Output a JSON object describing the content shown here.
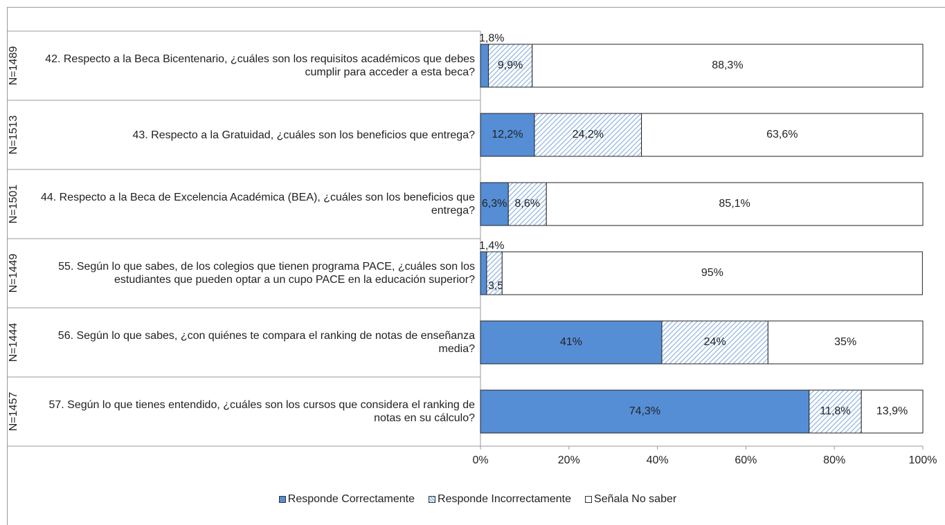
{
  "chart_data": {
    "type": "stacked-bar-horizontal",
    "categories": [
      "42. Respecto a la Beca Bicentenario, ¿cuáles son los requisitos académicos que debes cumplir para acceder a esta beca?",
      "43. Respecto a la Gratuidad, ¿cuáles son los beneficios que entrega?",
      "44. Respecto a la Beca de Excelencia Académica (BEA), ¿cuáles son los beneficios que entrega?",
      "55. Según lo que sabes, de los colegios que tienen programa PACE, ¿cuáles son los estudiantes que pueden optar a un cupo PACE en la educación superior?",
      "56. Según lo que sabes, ¿con quiénes te compara el ranking de notas de enseñanza media?",
      "57. Según lo que tienes entendido, ¿cuáles son los cursos que considera el ranking de notas en su cálculo?"
    ],
    "group_labels": [
      "N=1489",
      "N=1513",
      "N=1501",
      "N=1449",
      "N=1444",
      "N=1457"
    ],
    "series": [
      {
        "name": "Responde Correctamente",
        "color": "#558ed5",
        "values": [
          1.8,
          12.2,
          6.3,
          1.4,
          41,
          74.3
        ],
        "value_labels": [
          "1,8%",
          "12,2%",
          "6,3%",
          "1,4%",
          "41%",
          "74,3%"
        ]
      },
      {
        "name": "Responde Incorrectamente",
        "color": "#8db3e2",
        "pattern": "hatch",
        "values": [
          9.9,
          24.2,
          8.6,
          3.5,
          24,
          11.8
        ],
        "value_labels": [
          "9,9%",
          "24,2%",
          "8,6%",
          "3,5%",
          "24%",
          "11,8%"
        ]
      },
      {
        "name": "Señala No saber",
        "color": "#ffffff",
        "values": [
          88.3,
          63.6,
          85.1,
          95,
          35,
          13.9
        ],
        "value_labels": [
          "88,3%",
          "63,6%",
          "85,1%",
          "95%",
          "35%",
          "13,9%"
        ]
      }
    ],
    "xlim": [
      0,
      100
    ],
    "xticks": [
      {
        "value": 0,
        "label": "0%"
      },
      {
        "value": 20,
        "label": "20%"
      },
      {
        "value": 40,
        "label": "40%"
      },
      {
        "value": 60,
        "label": "60%"
      },
      {
        "value": 80,
        "label": "80%"
      },
      {
        "value": 100,
        "label": "100%"
      }
    ],
    "legend": "bottom"
  }
}
